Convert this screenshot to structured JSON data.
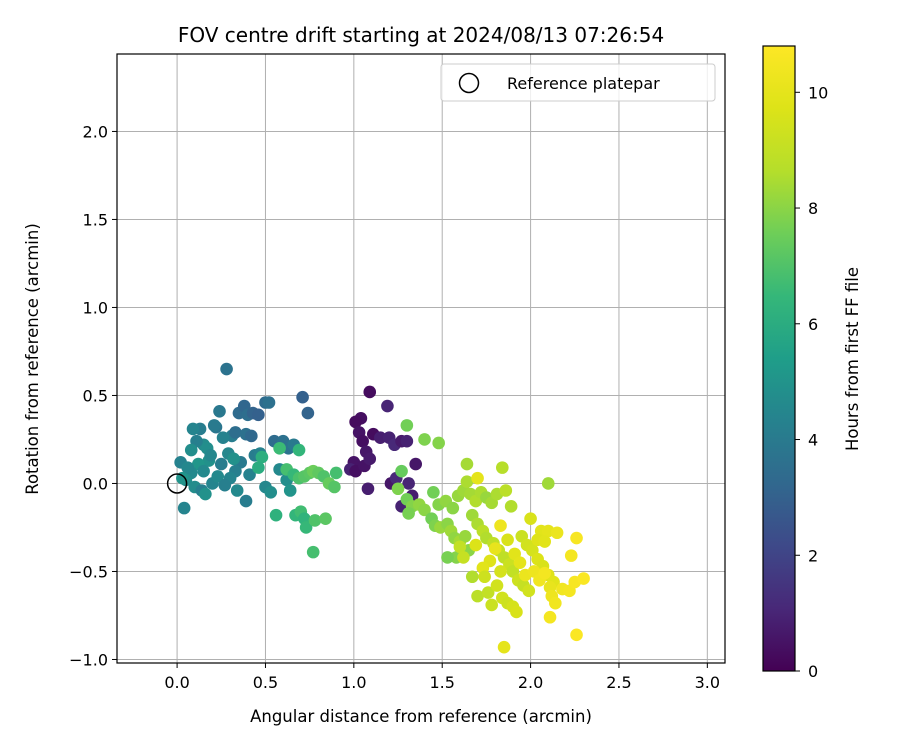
{
  "chart_data": {
    "type": "scatter",
    "title": "FOV centre drift starting at 2024/08/13 07:26:54",
    "xlabel": "Angular distance from reference (arcmin)",
    "ylabel": "Rotation from reference (arcmin)",
    "colorbar_label": "Hours from first FF file",
    "xlim": [
      -0.34,
      3.1
    ],
    "ylim": [
      -1.02,
      2.44
    ],
    "x_ticks": [
      0.0,
      0.5,
      1.0,
      1.5,
      2.0,
      2.5,
      3.0
    ],
    "x_tick_labels": [
      "0.0",
      "0.5",
      "1.0",
      "1.5",
      "2.0",
      "2.5",
      "3.0"
    ],
    "y_ticks": [
      -1.0,
      -0.5,
      0.0,
      0.5,
      1.0,
      1.5,
      2.0
    ],
    "y_tick_labels": [
      "−1.0",
      "−0.5",
      "0.0",
      "0.5",
      "1.0",
      "1.5",
      "2.0"
    ],
    "colorbar_range": [
      0,
      10.8
    ],
    "colorbar_ticks": [
      0,
      2,
      4,
      6,
      8,
      10
    ],
    "colorbar_tick_labels": [
      "0",
      "2",
      "4",
      "6",
      "8",
      "10"
    ],
    "colormap": "viridis",
    "grid": true,
    "legend": {
      "position": "top-right",
      "entries": [
        "Reference platepar"
      ]
    },
    "reference_point": {
      "x": 0.0,
      "y": 0.0
    },
    "points": [
      [
        1.09,
        0.52,
        0.3
      ],
      [
        1.04,
        0.37,
        0.4
      ],
      [
        1.01,
        0.35,
        0.3
      ],
      [
        1.03,
        0.29,
        0.5
      ],
      [
        1.05,
        0.24,
        0.4
      ],
      [
        1.07,
        0.18,
        0.6
      ],
      [
        1.11,
        0.28,
        0.3
      ],
      [
        1.15,
        0.26,
        0.8
      ],
      [
        1.19,
        0.44,
        1.0
      ],
      [
        1.2,
        0.26,
        0.9
      ],
      [
        1.23,
        0.22,
        1.1
      ],
      [
        1.27,
        0.24,
        0.7
      ],
      [
        1.3,
        0.24,
        0.9
      ],
      [
        1.35,
        0.11,
        0.6
      ],
      [
        1.0,
        0.12,
        0.5
      ],
      [
        0.98,
        0.08,
        0.9
      ],
      [
        1.01,
        0.07,
        0.4
      ],
      [
        1.06,
        0.1,
        0.5
      ],
      [
        1.09,
        0.14,
        0.7
      ],
      [
        1.08,
        -0.03,
        0.8
      ],
      [
        1.21,
        0.0,
        0.6
      ],
      [
        1.27,
        -0.13,
        0.9
      ],
      [
        1.31,
        0.0,
        1.0
      ],
      [
        1.24,
        0.03,
        1.1
      ],
      [
        1.33,
        -0.07,
        0.8
      ],
      [
        0.13,
        0.31,
        4.1
      ],
      [
        0.09,
        0.31,
        4.4
      ],
      [
        0.15,
        0.22,
        4.7
      ],
      [
        0.18,
        0.13,
        4.9
      ],
      [
        0.12,
        0.11,
        5.1
      ],
      [
        0.08,
        0.06,
        4.6
      ],
      [
        0.05,
        0.02,
        4.8
      ],
      [
        0.02,
        0.12,
        4.3
      ],
      [
        0.06,
        0.09,
        4.5
      ],
      [
        0.03,
        0.03,
        5.0
      ],
      [
        0.1,
        -0.02,
        4.7
      ],
      [
        0.14,
        -0.04,
        4.2
      ],
      [
        0.16,
        -0.06,
        4.9
      ],
      [
        0.2,
        0.0,
        4.4
      ],
      [
        0.23,
        0.04,
        4.6
      ],
      [
        0.25,
        0.11,
        4.1
      ],
      [
        0.22,
        0.32,
        3.8
      ],
      [
        0.24,
        0.41,
        3.9
      ],
      [
        0.28,
        0.65,
        3.7
      ],
      [
        0.31,
        0.27,
        4.1
      ],
      [
        0.33,
        0.29,
        3.5
      ],
      [
        0.35,
        0.4,
        3.4
      ],
      [
        0.38,
        0.44,
        3.2
      ],
      [
        0.4,
        0.39,
        3.5
      ],
      [
        0.43,
        0.4,
        3.1
      ],
      [
        0.46,
        0.39,
        3.0
      ],
      [
        0.5,
        0.46,
        3.4
      ],
      [
        0.52,
        0.46,
        3.6
      ],
      [
        0.39,
        0.28,
        3.6
      ],
      [
        0.42,
        0.27,
        3.3
      ],
      [
        0.36,
        0.12,
        4.0
      ],
      [
        0.33,
        0.07,
        4.2
      ],
      [
        0.3,
        0.03,
        4.4
      ],
      [
        0.34,
        -0.04,
        4.6
      ],
      [
        0.39,
        -0.1,
        4.1
      ],
      [
        0.41,
        0.05,
        4.3
      ],
      [
        0.44,
        0.16,
        4.1
      ],
      [
        0.47,
        0.17,
        4.3
      ],
      [
        0.5,
        -0.02,
        4.5
      ],
      [
        0.53,
        -0.05,
        4.8
      ],
      [
        0.55,
        0.24,
        3.4
      ],
      [
        0.6,
        0.24,
        3.6
      ],
      [
        0.63,
        0.2,
        3.7
      ],
      [
        0.66,
        0.22,
        4.0
      ],
      [
        0.58,
        0.08,
        4.6
      ],
      [
        0.62,
        0.02,
        4.8
      ],
      [
        0.64,
        -0.04,
        5.0
      ],
      [
        0.71,
        0.49,
        3.0
      ],
      [
        0.74,
        0.4,
        3.1
      ],
      [
        0.04,
        -0.14,
        4.4
      ],
      [
        0.27,
        -0.01,
        4.2
      ],
      [
        0.17,
        0.2,
        4.8
      ],
      [
        0.19,
        0.16,
        4.5
      ],
      [
        0.21,
        0.33,
        4.0
      ],
      [
        0.11,
        0.24,
        4.2
      ],
      [
        0.08,
        0.19,
        4.8
      ],
      [
        0.15,
        0.07,
        4.6
      ],
      [
        0.26,
        0.26,
        4.3
      ],
      [
        0.29,
        0.17,
        4.5
      ],
      [
        0.32,
        0.14,
        4.9
      ],
      [
        0.58,
        0.2,
        6.6
      ],
      [
        0.62,
        0.08,
        6.8
      ],
      [
        0.66,
        0.05,
        6.5
      ],
      [
        0.69,
        0.03,
        6.9
      ],
      [
        0.72,
        0.04,
        7.1
      ],
      [
        0.75,
        0.06,
        7.2
      ],
      [
        0.77,
        0.07,
        7.5
      ],
      [
        0.8,
        0.06,
        7.3
      ],
      [
        0.83,
        0.04,
        7.0
      ],
      [
        0.86,
        0.0,
        7.4
      ],
      [
        0.89,
        -0.02,
        7.1
      ],
      [
        0.9,
        0.06,
        6.8
      ],
      [
        0.69,
        0.19,
        6.4
      ],
      [
        0.56,
        -0.18,
        6.2
      ],
      [
        0.67,
        -0.18,
        6.4
      ],
      [
        0.7,
        -0.16,
        6.7
      ],
      [
        0.72,
        -0.2,
        6.3
      ],
      [
        0.73,
        -0.25,
        6.5
      ],
      [
        0.78,
        -0.21,
        7.0
      ],
      [
        0.84,
        -0.2,
        7.2
      ],
      [
        0.77,
        -0.39,
        6.8
      ],
      [
        0.48,
        0.15,
        6.1
      ],
      [
        0.46,
        0.09,
        6.0
      ],
      [
        1.3,
        0.33,
        7.6
      ],
      [
        1.4,
        0.25,
        7.8
      ],
      [
        1.48,
        0.23,
        7.9
      ],
      [
        1.27,
        0.07,
        7.4
      ],
      [
        1.25,
        -0.03,
        7.8
      ],
      [
        1.3,
        -0.09,
        7.6
      ],
      [
        1.33,
        -0.13,
        7.9
      ],
      [
        1.37,
        -0.12,
        8.1
      ],
      [
        1.31,
        -0.17,
        7.7
      ],
      [
        1.4,
        -0.15,
        8.0
      ],
      [
        1.44,
        -0.2,
        7.6
      ],
      [
        1.46,
        -0.24,
        7.8
      ],
      [
        1.49,
        -0.25,
        8.2
      ],
      [
        1.53,
        -0.23,
        8.0
      ],
      [
        1.55,
        -0.27,
        8.3
      ],
      [
        1.57,
        -0.31,
        8.1
      ],
      [
        1.6,
        -0.33,
        8.4
      ],
      [
        1.63,
        -0.3,
        8.2
      ],
      [
        1.58,
        -0.42,
        7.9
      ],
      [
        1.53,
        -0.42,
        7.7
      ],
      [
        1.65,
        -0.38,
        8.0
      ],
      [
        1.45,
        -0.05,
        7.6
      ],
      [
        1.48,
        -0.12,
        7.9
      ],
      [
        1.52,
        -0.1,
        8.1
      ],
      [
        1.56,
        -0.14,
        8.0
      ],
      [
        1.59,
        -0.07,
        8.2
      ],
      [
        1.62,
        -0.04,
        8.3
      ],
      [
        1.64,
        0.01,
        8.5
      ],
      [
        1.66,
        -0.06,
        8.4
      ],
      [
        1.69,
        -0.1,
        8.6
      ],
      [
        1.72,
        -0.05,
        8.5
      ],
      [
        1.75,
        -0.08,
        8.2
      ],
      [
        1.78,
        -0.11,
        8.4
      ],
      [
        1.81,
        -0.06,
        8.5
      ],
      [
        1.84,
        0.09,
        8.7
      ],
      [
        1.86,
        -0.04,
        8.8
      ],
      [
        1.89,
        -0.13,
        8.6
      ],
      [
        1.64,
        0.11,
        8.4
      ],
      [
        1.67,
        -0.18,
        8.3
      ],
      [
        1.7,
        -0.23,
        8.5
      ],
      [
        1.73,
        -0.27,
        8.8
      ],
      [
        1.75,
        -0.31,
        8.6
      ],
      [
        1.79,
        -0.34,
        8.9
      ],
      [
        1.82,
        -0.38,
        9.1
      ],
      [
        1.85,
        -0.42,
        8.9
      ],
      [
        1.88,
        -0.46,
        9.2
      ],
      [
        1.9,
        -0.5,
        9.0
      ],
      [
        1.93,
        -0.55,
        9.3
      ],
      [
        1.96,
        -0.58,
        9.1
      ],
      [
        1.99,
        -0.61,
        9.4
      ],
      [
        1.67,
        -0.53,
        8.6
      ],
      [
        1.7,
        -0.64,
        8.8
      ],
      [
        1.76,
        -0.62,
        9.0
      ],
      [
        1.78,
        -0.69,
        9.2
      ],
      [
        1.84,
        -0.65,
        9.4
      ],
      [
        1.87,
        -0.68,
        9.3
      ],
      [
        1.9,
        -0.7,
        9.5
      ],
      [
        1.92,
        -0.73,
        9.6
      ],
      [
        2.1,
        0.0,
        8.3
      ],
      [
        1.95,
        -0.3,
        9.2
      ],
      [
        1.98,
        -0.35,
        9.4
      ],
      [
        2.01,
        -0.38,
        9.5
      ],
      [
        2.04,
        -0.43,
        9.7
      ],
      [
        2.07,
        -0.47,
        9.6
      ],
      [
        2.1,
        -0.52,
        9.8
      ],
      [
        2.13,
        -0.56,
        9.9
      ],
      [
        2.0,
        -0.2,
        9.6
      ],
      [
        2.06,
        -0.27,
        9.9
      ],
      [
        2.1,
        -0.27,
        10.0
      ],
      [
        2.15,
        -0.28,
        10.2
      ],
      [
        2.04,
        -0.32,
        9.8
      ],
      [
        2.08,
        -0.33,
        9.9
      ],
      [
        2.11,
        -0.59,
        10.1
      ],
      [
        2.12,
        -0.64,
        10.3
      ],
      [
        2.14,
        -0.68,
        10.4
      ],
      [
        2.11,
        -0.76,
        10.5
      ],
      [
        2.18,
        -0.6,
        10.4
      ],
      [
        2.22,
        -0.61,
        10.5
      ],
      [
        2.25,
        -0.56,
        10.6
      ],
      [
        2.3,
        -0.54,
        10.7
      ],
      [
        2.23,
        -0.41,
        10.5
      ],
      [
        2.26,
        -0.31,
        10.6
      ],
      [
        2.26,
        -0.86,
        10.7
      ],
      [
        1.85,
        -0.93,
        10.0
      ],
      [
        1.7,
        0.03,
        10.0
      ],
      [
        1.83,
        -0.24,
        10.3
      ],
      [
        1.8,
        -0.37,
        10.1
      ],
      [
        1.77,
        -0.44,
        9.8
      ],
      [
        1.73,
        -0.48,
        9.9
      ],
      [
        1.69,
        -0.35,
        9.7
      ],
      [
        1.87,
        -0.32,
        9.6
      ],
      [
        1.91,
        -0.4,
        9.9
      ],
      [
        1.94,
        -0.45,
        10.0
      ],
      [
        1.97,
        -0.52,
        10.2
      ],
      [
        2.02,
        -0.5,
        10.3
      ],
      [
        2.05,
        -0.55,
        10.4
      ],
      [
        2.08,
        -0.51,
        10.5
      ],
      [
        1.6,
        -0.36,
        9.0
      ],
      [
        1.62,
        -0.42,
        9.1
      ],
      [
        1.74,
        -0.53,
        9.3
      ],
      [
        1.81,
        -0.58,
        9.4
      ],
      [
        1.83,
        -0.5,
        9.5
      ]
    ]
  }
}
